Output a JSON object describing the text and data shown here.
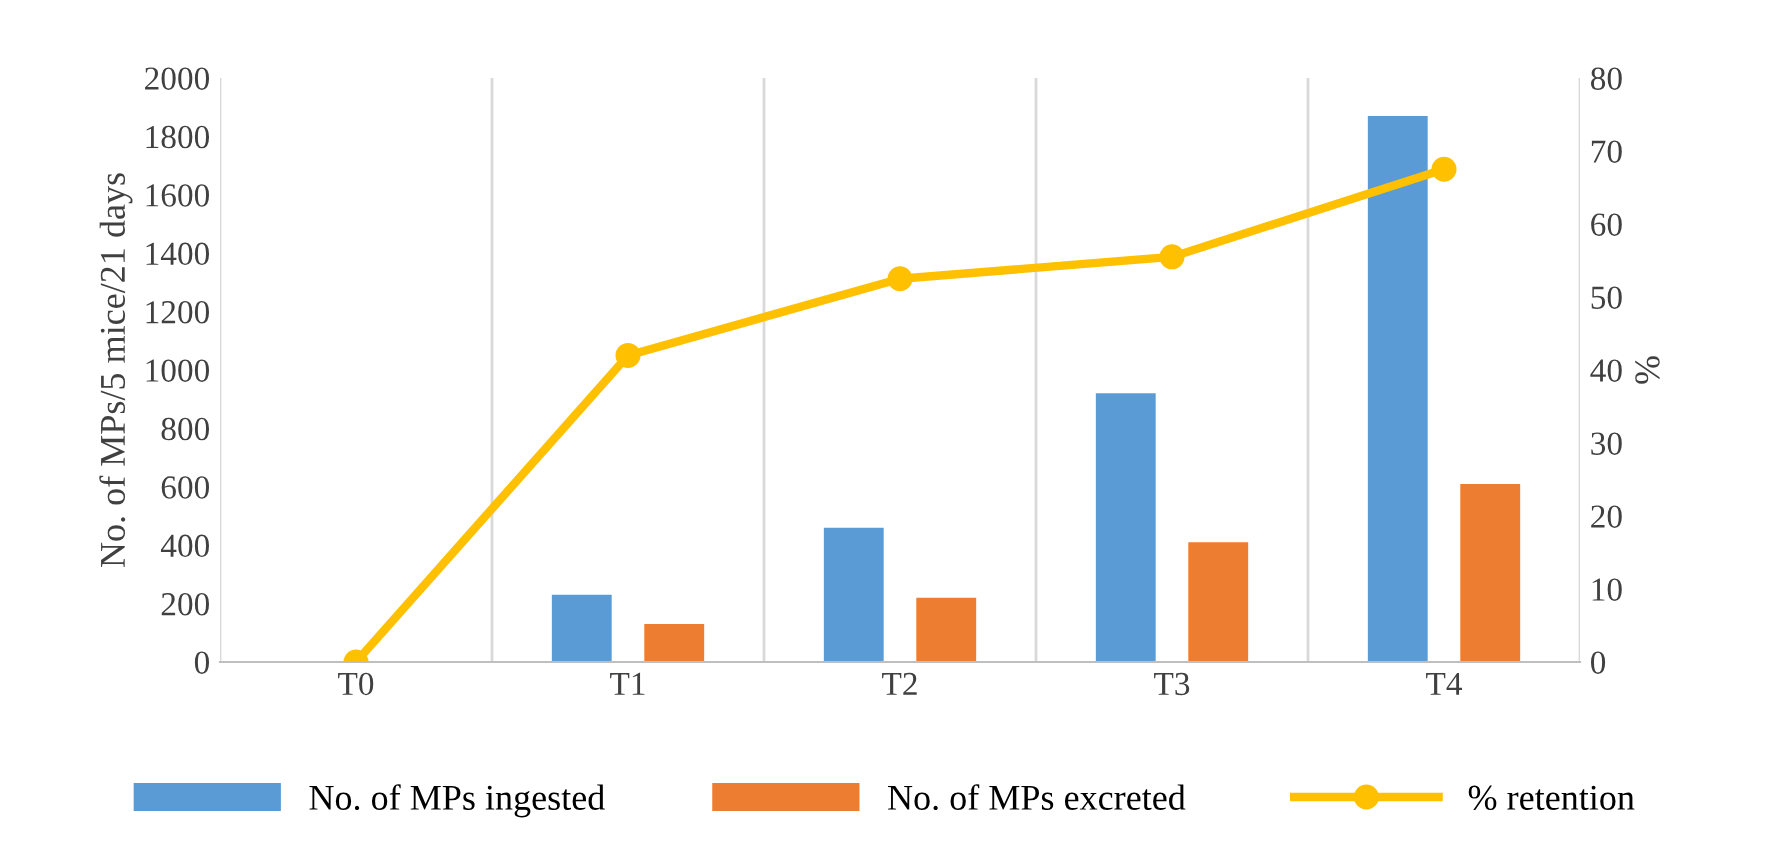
{
  "chart_data": {
    "type": "bar",
    "categories": [
      "T0",
      "T1",
      "T2",
      "T3",
      "T4"
    ],
    "ylabel": "No. of MPs/5 mice/21 days",
    "y2label": "%",
    "ylim": [
      0,
      2000
    ],
    "yticks": [
      0,
      200,
      400,
      600,
      800,
      1000,
      1200,
      1400,
      1600,
      1800,
      2000
    ],
    "y2lim": [
      0,
      80
    ],
    "y2ticks": [
      0,
      10,
      20,
      30,
      40,
      50,
      60,
      70,
      80
    ],
    "grid": "x",
    "legend": "bottom",
    "series": [
      {
        "name": "No. of MPs ingested",
        "color": "#5b9bd5",
        "values": [
          0,
          230,
          460,
          920,
          1870
        ]
      },
      {
        "name": "No. of MPs excreted",
        "color": "#ed7d31",
        "values": [
          0,
          130,
          220,
          410,
          610
        ]
      },
      {
        "name": "% retention",
        "type": "line",
        "axis": "y2",
        "color": "#ffc000",
        "marker": "circle",
        "line_style": "solid",
        "values": [
          0,
          42,
          52.5,
          55.5,
          67.5
        ]
      }
    ]
  }
}
